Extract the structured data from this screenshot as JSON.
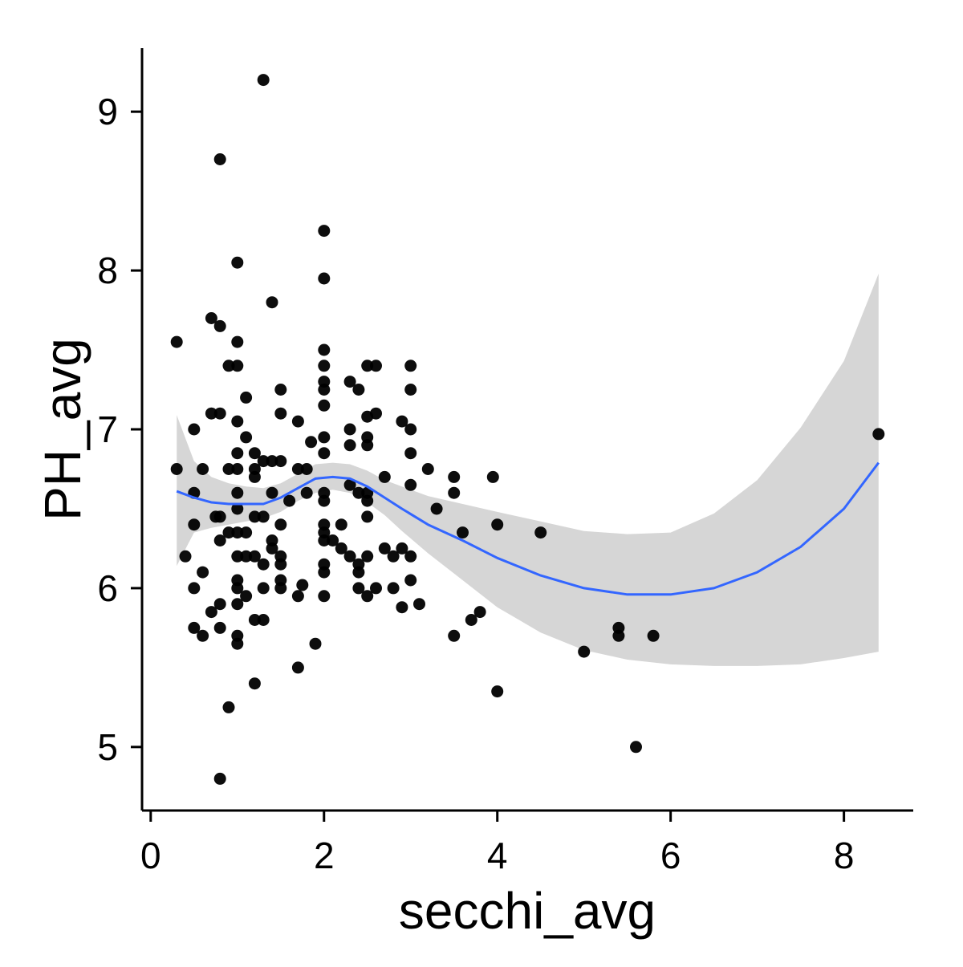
{
  "chart_data": {
    "type": "scatter",
    "title": "",
    "xlabel": "secchi_avg",
    "ylabel": "PH_avg",
    "xlim": [
      -0.1,
      8.8
    ],
    "ylim": [
      4.6,
      9.4
    ],
    "x_ticks": [
      0,
      2,
      4,
      6,
      8
    ],
    "y_ticks": [
      5,
      6,
      7,
      8,
      9
    ],
    "x_tick_labels": [
      "0",
      "2",
      "4",
      "6",
      "8"
    ],
    "y_tick_labels": [
      "5",
      "6",
      "7",
      "8",
      "9"
    ],
    "grid": false,
    "legend": "none",
    "colors": {
      "points": "#000000",
      "smooth_line": "#3366ff",
      "confidence_band": "#d6d6d6",
      "axis": "#000000"
    },
    "series": [
      {
        "type": "points",
        "points": [
          [
            0.3,
            7.55
          ],
          [
            0.3,
            6.75
          ],
          [
            0.4,
            6.2
          ],
          [
            0.5,
            7.0
          ],
          [
            0.5,
            6.6
          ],
          [
            0.5,
            6.4
          ],
          [
            0.5,
            6.0
          ],
          [
            0.5,
            5.75
          ],
          [
            0.6,
            6.75
          ],
          [
            0.6,
            6.1
          ],
          [
            0.6,
            5.7
          ],
          [
            0.7,
            7.7
          ],
          [
            0.7,
            7.1
          ],
          [
            0.7,
            5.85
          ],
          [
            0.75,
            6.45
          ],
          [
            0.8,
            8.7
          ],
          [
            0.8,
            7.65
          ],
          [
            0.8,
            7.1
          ],
          [
            0.8,
            6.45
          ],
          [
            0.8,
            6.3
          ],
          [
            0.8,
            5.9
          ],
          [
            0.8,
            5.75
          ],
          [
            0.8,
            4.8
          ],
          [
            0.9,
            7.4
          ],
          [
            0.9,
            6.75
          ],
          [
            0.9,
            6.35
          ],
          [
            0.9,
            5.25
          ],
          [
            1.0,
            8.05
          ],
          [
            1.0,
            7.55
          ],
          [
            1.0,
            7.4
          ],
          [
            1.0,
            7.05
          ],
          [
            1.0,
            6.85
          ],
          [
            1.0,
            6.75
          ],
          [
            1.0,
            6.6
          ],
          [
            1.0,
            6.5
          ],
          [
            1.0,
            6.35
          ],
          [
            1.0,
            6.2
          ],
          [
            1.0,
            6.05
          ],
          [
            1.0,
            6.0
          ],
          [
            1.0,
            5.9
          ],
          [
            1.0,
            5.7
          ],
          [
            1.0,
            5.65
          ],
          [
            1.1,
            7.2
          ],
          [
            1.1,
            6.95
          ],
          [
            1.1,
            6.35
          ],
          [
            1.1,
            6.2
          ],
          [
            1.1,
            5.95
          ],
          [
            1.2,
            6.85
          ],
          [
            1.2,
            6.75
          ],
          [
            1.2,
            6.7
          ],
          [
            1.2,
            6.45
          ],
          [
            1.2,
            6.2
          ],
          [
            1.2,
            5.8
          ],
          [
            1.2,
            5.4
          ],
          [
            1.3,
            9.2
          ],
          [
            1.3,
            6.8
          ],
          [
            1.3,
            6.45
          ],
          [
            1.3,
            6.15
          ],
          [
            1.3,
            6.0
          ],
          [
            1.3,
            5.8
          ],
          [
            1.4,
            7.8
          ],
          [
            1.4,
            6.8
          ],
          [
            1.4,
            6.6
          ],
          [
            1.4,
            6.3
          ],
          [
            1.4,
            6.25
          ],
          [
            1.5,
            7.25
          ],
          [
            1.5,
            7.1
          ],
          [
            1.5,
            6.8
          ],
          [
            1.5,
            6.4
          ],
          [
            1.5,
            6.2
          ],
          [
            1.5,
            6.15
          ],
          [
            1.5,
            6.05
          ],
          [
            1.5,
            6.0
          ],
          [
            1.6,
            6.55
          ],
          [
            1.7,
            7.05
          ],
          [
            1.7,
            6.75
          ],
          [
            1.7,
            5.95
          ],
          [
            1.7,
            5.5
          ],
          [
            1.75,
            6.02
          ],
          [
            1.8,
            6.75
          ],
          [
            1.8,
            6.6
          ],
          [
            1.85,
            6.92
          ],
          [
            1.9,
            5.65
          ],
          [
            2.0,
            8.25
          ],
          [
            2.0,
            7.95
          ],
          [
            2.0,
            7.5
          ],
          [
            2.0,
            7.4
          ],
          [
            2.0,
            7.3
          ],
          [
            2.0,
            7.25
          ],
          [
            2.0,
            7.15
          ],
          [
            2.0,
            6.95
          ],
          [
            2.0,
            6.85
          ],
          [
            2.0,
            6.6
          ],
          [
            2.0,
            6.55
          ],
          [
            2.0,
            6.4
          ],
          [
            2.0,
            6.35
          ],
          [
            2.0,
            6.3
          ],
          [
            2.0,
            6.15
          ],
          [
            2.0,
            6.1
          ],
          [
            2.0,
            5.95
          ],
          [
            2.1,
            6.3
          ],
          [
            2.2,
            6.4
          ],
          [
            2.2,
            6.25
          ],
          [
            2.3,
            7.3
          ],
          [
            2.3,
            7.0
          ],
          [
            2.3,
            6.9
          ],
          [
            2.3,
            6.65
          ],
          [
            2.3,
            6.2
          ],
          [
            2.4,
            7.25
          ],
          [
            2.4,
            6.6
          ],
          [
            2.4,
            6.15
          ],
          [
            2.4,
            6.1
          ],
          [
            2.4,
            6.0
          ],
          [
            2.5,
            7.4
          ],
          [
            2.5,
            7.08
          ],
          [
            2.5,
            6.95
          ],
          [
            2.5,
            6.9
          ],
          [
            2.5,
            6.6
          ],
          [
            2.5,
            6.55
          ],
          [
            2.5,
            6.45
          ],
          [
            2.5,
            6.2
          ],
          [
            2.5,
            5.95
          ],
          [
            2.6,
            7.4
          ],
          [
            2.6,
            7.1
          ],
          [
            2.6,
            6.0
          ],
          [
            2.7,
            6.7
          ],
          [
            2.7,
            6.25
          ],
          [
            2.8,
            6.2
          ],
          [
            2.8,
            6.0
          ],
          [
            2.9,
            7.05
          ],
          [
            2.9,
            6.25
          ],
          [
            2.9,
            5.88
          ],
          [
            3.0,
            7.4
          ],
          [
            3.0,
            7.25
          ],
          [
            3.0,
            7.0
          ],
          [
            3.0,
            6.85
          ],
          [
            3.0,
            6.65
          ],
          [
            3.0,
            6.2
          ],
          [
            3.0,
            6.05
          ],
          [
            3.1,
            5.9
          ],
          [
            3.2,
            6.75
          ],
          [
            3.3,
            6.5
          ],
          [
            3.5,
            6.7
          ],
          [
            3.5,
            6.6
          ],
          [
            3.5,
            5.7
          ],
          [
            3.6,
            6.35
          ],
          [
            3.7,
            5.8
          ],
          [
            3.8,
            5.85
          ],
          [
            3.95,
            6.7
          ],
          [
            4.0,
            6.4
          ],
          [
            4.0,
            5.35
          ],
          [
            4.5,
            6.35
          ],
          [
            5.0,
            5.6
          ],
          [
            5.4,
            5.75
          ],
          [
            5.4,
            5.7
          ],
          [
            5.6,
            5.0
          ],
          [
            5.8,
            5.7
          ],
          [
            8.4,
            6.97
          ]
        ]
      },
      {
        "type": "smooth",
        "x": [
          0.3,
          0.5,
          0.7,
          0.9,
          1.1,
          1.3,
          1.5,
          1.7,
          1.9,
          2.1,
          2.3,
          2.5,
          2.7,
          2.9,
          3.2,
          3.6,
          4.0,
          4.5,
          5.0,
          5.5,
          6.0,
          6.5,
          7.0,
          7.5,
          8.0,
          8.4
        ],
        "y": [
          6.61,
          6.57,
          6.54,
          6.53,
          6.53,
          6.53,
          6.57,
          6.63,
          6.69,
          6.7,
          6.69,
          6.64,
          6.57,
          6.5,
          6.4,
          6.3,
          6.19,
          6.08,
          6.0,
          5.96,
          5.96,
          6.0,
          6.1,
          6.26,
          6.5,
          6.79
        ],
        "lower": [
          6.14,
          6.35,
          6.38,
          6.4,
          6.42,
          6.44,
          6.48,
          6.55,
          6.6,
          6.62,
          6.6,
          6.54,
          6.46,
          6.36,
          6.22,
          6.05,
          5.88,
          5.72,
          5.61,
          5.55,
          5.52,
          5.51,
          5.51,
          5.52,
          5.56,
          5.6
        ],
        "upper": [
          7.09,
          6.8,
          6.7,
          6.66,
          6.64,
          6.63,
          6.66,
          6.72,
          6.78,
          6.79,
          6.78,
          6.74,
          6.68,
          6.64,
          6.58,
          6.53,
          6.48,
          6.42,
          6.36,
          6.34,
          6.35,
          6.47,
          6.68,
          7.01,
          7.43,
          7.98
        ]
      }
    ]
  }
}
